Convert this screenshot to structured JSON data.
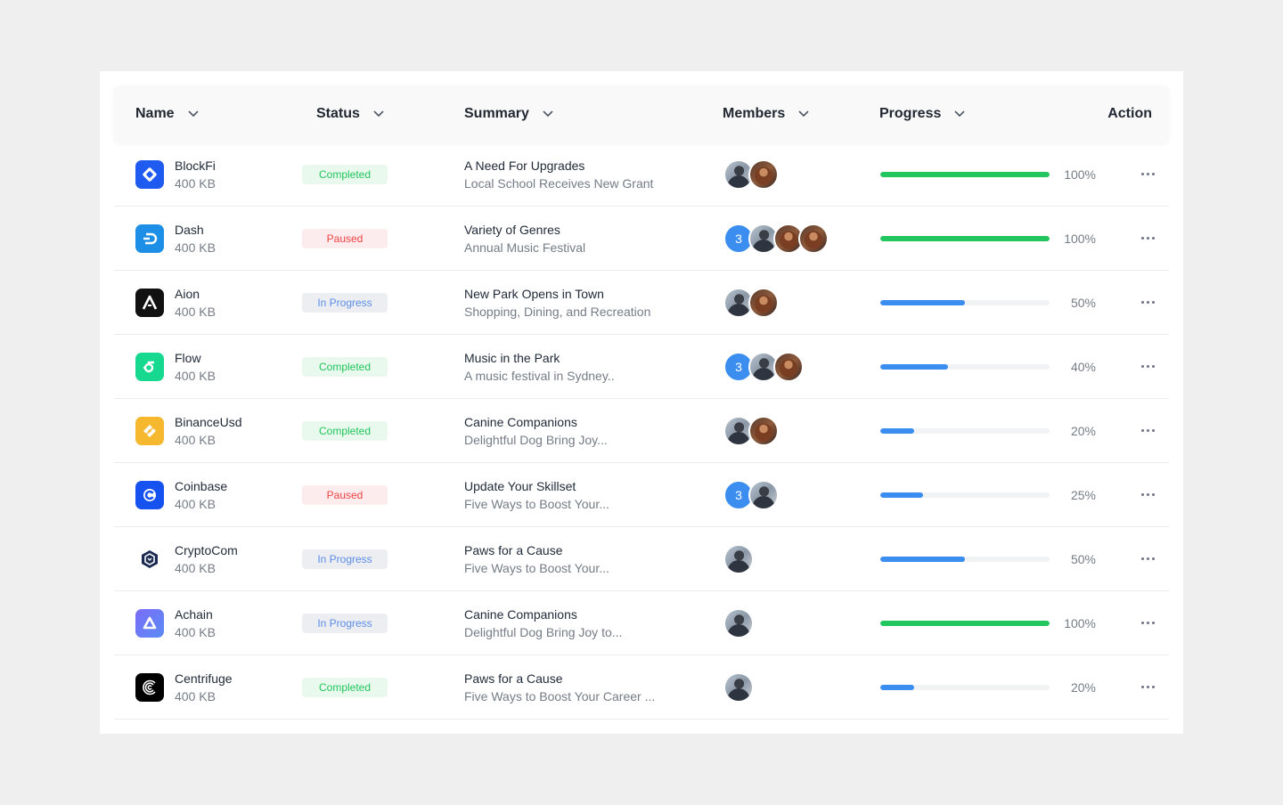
{
  "colors": {
    "completed": "#22c55e",
    "paused": "#ef4444",
    "in_progress": "#5b8de6",
    "progress_green": "#22c55e",
    "progress_blue": "#3b8ef0"
  },
  "columns": {
    "name": "Name",
    "status": "Status",
    "summary": "Summary",
    "members": "Members",
    "progress": "Progress",
    "action": "Action"
  },
  "rows": [
    {
      "name": "BlockFi",
      "size": "400 KB",
      "logo_icon": "blockfi-logo-icon",
      "status": "Completed",
      "status_kind": "completed",
      "title": "A Need For Upgrades",
      "subtitle": "Local School Receives New Grant",
      "members": {
        "count": null,
        "avatars": [
          "man",
          "woman"
        ]
      },
      "progress": 100,
      "progress_label": "100%",
      "progress_color": "green"
    },
    {
      "name": "Dash",
      "size": "400 KB",
      "logo_icon": "dash-logo-icon",
      "status": "Paused",
      "status_kind": "paused",
      "title": "Variety of Genres",
      "subtitle": "Annual Music Festival",
      "members": {
        "count": "3",
        "avatars": [
          "man",
          "woman",
          "woman"
        ]
      },
      "progress": 100,
      "progress_label": "100%",
      "progress_color": "green"
    },
    {
      "name": "Aion",
      "size": "400 KB",
      "logo_icon": "aion-logo-icon",
      "status": "In Progress",
      "status_kind": "inprogress",
      "title": "New Park Opens in Town",
      "subtitle": "Shopping, Dining, and Recreation",
      "members": {
        "count": null,
        "avatars": [
          "man",
          "woman"
        ]
      },
      "progress": 50,
      "progress_label": "50%",
      "progress_color": "blue"
    },
    {
      "name": "Flow",
      "size": "400 KB",
      "logo_icon": "flow-logo-icon",
      "status": "Completed",
      "status_kind": "completed",
      "title": "Music in the Park",
      "subtitle": "A music festival in Sydney..",
      "members": {
        "count": "3",
        "avatars": [
          "man",
          "woman"
        ]
      },
      "progress": 40,
      "progress_label": "40%",
      "progress_color": "blue"
    },
    {
      "name": "BinanceUsd",
      "size": "400 KB",
      "logo_icon": "binanceusd-logo-icon",
      "status": "Completed",
      "status_kind": "completed",
      "title": "Canine Companions",
      "subtitle": "Delightful Dog Bring Joy...",
      "members": {
        "count": null,
        "avatars": [
          "man",
          "woman"
        ]
      },
      "progress": 20,
      "progress_label": "20%",
      "progress_color": "blue"
    },
    {
      "name": "Coinbase",
      "size": "400 KB",
      "logo_icon": "coinbase-logo-icon",
      "status": "Paused",
      "status_kind": "paused",
      "title": "Update Your Skillset",
      "subtitle": "Five Ways to Boost Your...",
      "members": {
        "count": "3",
        "avatars": [
          "man"
        ]
      },
      "progress": 25,
      "progress_label": "25%",
      "progress_color": "blue"
    },
    {
      "name": "CryptoCom",
      "size": "400 KB",
      "logo_icon": "cryptocom-logo-icon",
      "status": "In Progress",
      "status_kind": "inprogress",
      "title": "Paws for a Cause",
      "subtitle": "Five Ways to Boost Your...",
      "members": {
        "count": null,
        "avatars": [
          "man"
        ]
      },
      "progress": 50,
      "progress_label": "50%",
      "progress_color": "blue"
    },
    {
      "name": "Achain",
      "size": "400 KB",
      "logo_icon": "achain-logo-icon",
      "status": "In Progress",
      "status_kind": "inprogress",
      "title": "Canine Companions",
      "subtitle": "Delightful Dog Bring Joy to...",
      "members": {
        "count": null,
        "avatars": [
          "man"
        ]
      },
      "progress": 100,
      "progress_label": "100%",
      "progress_color": "green"
    },
    {
      "name": "Centrifuge",
      "size": "400 KB",
      "logo_icon": "centrifuge-logo-icon",
      "status": "Completed",
      "status_kind": "completed",
      "title": "Paws for a Cause",
      "subtitle": "Five Ways to Boost Your Career ...",
      "members": {
        "count": null,
        "avatars": [
          "man"
        ]
      },
      "progress": 20,
      "progress_label": "20%",
      "progress_color": "blue"
    }
  ]
}
